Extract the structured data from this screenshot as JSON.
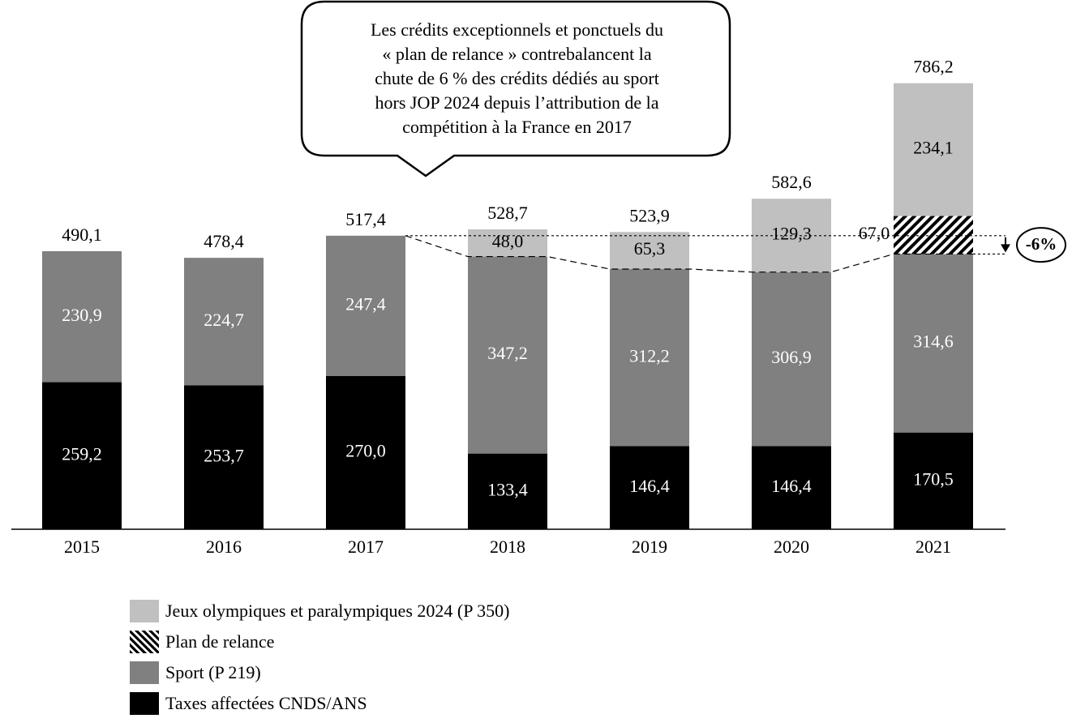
{
  "chart_data": {
    "type": "bar",
    "stacked": true,
    "categories": [
      "2015",
      "2016",
      "2017",
      "2018",
      "2019",
      "2020",
      "2021"
    ],
    "series": [
      {
        "name": "Taxes affectées CNDS/ANS",
        "color": "#000000",
        "label_color": "#ffffff",
        "values": [
          259.2,
          253.7,
          270.0,
          133.4,
          146.4,
          146.4,
          170.5
        ],
        "labels": [
          "259,2",
          "253,7",
          "270,0",
          "133,4",
          "146,4",
          "146,4",
          "170,5"
        ]
      },
      {
        "name": "Sport (P 219)",
        "color": "#808080",
        "label_color": "#ffffff",
        "values": [
          230.9,
          224.7,
          247.4,
          347.2,
          312.2,
          306.9,
          314.6
        ],
        "labels": [
          "230,9",
          "224,7",
          "247,4",
          "347,2",
          "312,2",
          "306,9",
          "314,6"
        ]
      },
      {
        "name": "Plan de relance",
        "color": "hatch",
        "label_color": "#000000",
        "values": [
          0,
          0,
          0,
          0,
          0,
          0,
          67.0
        ],
        "labels": [
          "",
          "",
          "",
          "",
          "",
          "",
          "67,0"
        ]
      },
      {
        "name": "Jeux olympiques et paralympiques 2024 (P 350)",
        "color": "#c0c0c0",
        "label_color": "#000000",
        "values": [
          0,
          0,
          0,
          48.0,
          65.3,
          129.3,
          234.1
        ],
        "labels": [
          "",
          "",
          "",
          "48,0",
          "65,3",
          "129,3",
          "234,1"
        ]
      }
    ],
    "totals": [
      490.1,
      478.4,
      517.4,
      528.7,
      523.9,
      582.6,
      786.2
    ],
    "total_labels": [
      "490,1",
      "478,4",
      "517,4",
      "528,7",
      "523,9",
      "582,6",
      "786,2"
    ],
    "ylim": [
      0,
      800
    ],
    "title": "",
    "xlabel": "",
    "ylabel": "",
    "annotation_change": "-6%",
    "callout_lines": [
      "Les crédits exceptionnels et ponctuels du",
      "« plan de relance » contrebalancent la",
      "chute de 6 % des crédits dédiés au sport",
      "hors JOP 2024 depuis l’attribution de la",
      "compétition à la France en 2017"
    ]
  },
  "legend": [
    {
      "label": "Jeux olympiques et paralympiques 2024 (P 350)",
      "color": "#c0c0c0",
      "swatch": "solid-light"
    },
    {
      "label": "Plan de relance",
      "color": "#000000",
      "swatch": "hatch"
    },
    {
      "label": "Sport (P 219)",
      "color": "#808080",
      "swatch": "solid-mid"
    },
    {
      "label": "Taxes affectées CNDS/ANS",
      "color": "#000000",
      "swatch": "solid-dark"
    }
  ]
}
